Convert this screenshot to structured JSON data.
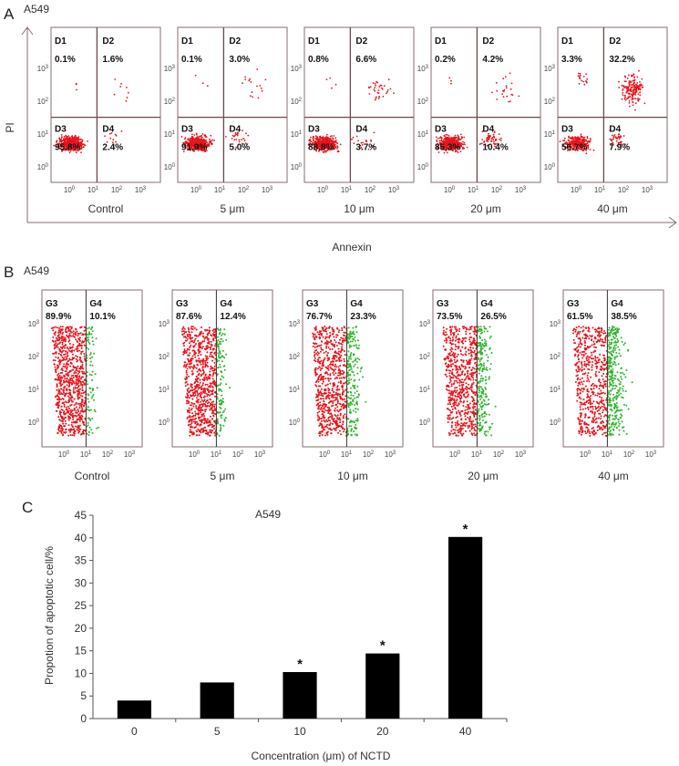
{
  "panel_a": {
    "letter": "A",
    "cell_line": "A549",
    "y_axis_label": "PI",
    "x_axis_label": "Annexin",
    "quadrant_names": [
      "D1",
      "D2",
      "D3",
      "D4"
    ],
    "tick_labels": [
      "10",
      "1",
      "2",
      "3",
      "0"
    ],
    "plots": [
      {
        "condition": "Control",
        "D1": "0.1%",
        "D2": "1.6%",
        "D3": "95.8%",
        "D4": "2.4%"
      },
      {
        "condition": "5 μm",
        "D1": "0.1%",
        "D2": "3.0%",
        "D3": "91.9%",
        "D4": "5.0%"
      },
      {
        "condition": "10 μm",
        "D1": "0.8%",
        "D2": "6.6%",
        "D3": "88.8%",
        "D4": "3.7%"
      },
      {
        "condition": "20 μm",
        "D1": "0.2%",
        "D2": "4.2%",
        "D3": "85.3%",
        "D4": "10.4%"
      },
      {
        "condition": "40 μm",
        "D1": "3.3%",
        "D2": "32.2%",
        "D3": "56.7%",
        "D4": "7.9%"
      }
    ],
    "colors": {
      "events": "#e8141b",
      "frame": "#8a6d6d",
      "gate": "#6b4a4a"
    }
  },
  "panel_b": {
    "letter": "B",
    "cell_line": "A549",
    "region_names": [
      "G3",
      "G4"
    ],
    "plots": [
      {
        "condition": "Control",
        "G3": "89.9%",
        "G4": "10.1%"
      },
      {
        "condition": "5 μm",
        "G3": "87.6%",
        "G4": "12.4%"
      },
      {
        "condition": "10 μm",
        "G3": "76.7%",
        "G4": "23.3%"
      },
      {
        "condition": "20 μm",
        "G3": "73.5%",
        "G4": "26.5%"
      },
      {
        "condition": "40 μm",
        "G3": "61.5%",
        "G4": "38.5%"
      }
    ],
    "colors": {
      "g3": "#e8141b",
      "g4": "#2fb52f"
    }
  },
  "chart_data": {
    "type": "bar",
    "panel_letter": "C",
    "title": "A549",
    "categories": [
      "0",
      "5",
      "10",
      "20",
      "40"
    ],
    "values": [
      4.0,
      8.0,
      10.3,
      14.4,
      40.2
    ],
    "significant": [
      "",
      "",
      "*",
      "*",
      "*"
    ],
    "xlabel": "Concentration (μm) of NCTD",
    "ylabel": "Propotion of apoptotic cell/%",
    "ylim": [
      0,
      45
    ],
    "yticks": [
      0,
      5,
      10,
      15,
      20,
      25,
      30,
      35,
      40,
      45
    ],
    "bar_color": "#000000"
  }
}
